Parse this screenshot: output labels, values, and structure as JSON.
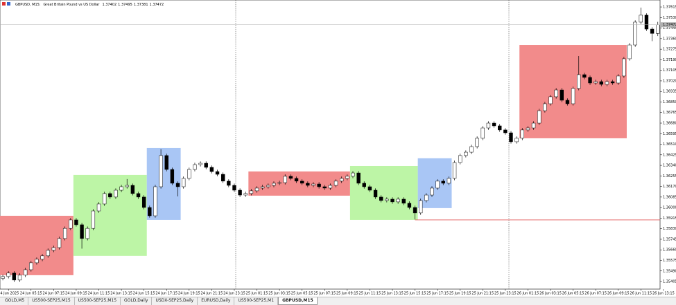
{
  "chart_data": {
    "type": "candlestick",
    "symbol": "GBPUSD, M15:",
    "description": "Great Britain Pound vs US Dollar",
    "candles": {
      "open": [
        1.3543,
        1.35445,
        1.35473,
        1.35417,
        1.35456,
        1.355,
        1.35556,
        1.35584,
        1.35612,
        1.35656,
        1.35678,
        1.35751,
        1.35833,
        1.35901,
        1.35862,
        1.35751,
        1.35833,
        1.35973,
        1.36029,
        1.36113,
        1.36085,
        1.3614,
        1.36168,
        1.36179,
        1.36113,
        1.36085,
        1.36001,
        1.35934,
        1.36168,
        1.36419,
        1.36307,
        1.36196,
        1.36168,
        1.36235,
        1.36307,
        1.36346,
        1.36357,
        1.36324,
        1.3629,
        1.36268,
        1.36213,
        1.36179,
        1.3614,
        1.36101,
        1.36113,
        1.36135,
        1.36157,
        1.36168,
        1.36179,
        1.36196,
        1.36201,
        1.36252,
        1.36235,
        1.36213,
        1.36196,
        1.36179,
        1.3619,
        1.36168,
        1.36157,
        1.36179,
        1.36213,
        1.36235,
        1.36252,
        1.36279,
        1.36196,
        1.36168,
        1.3614,
        1.36085,
        1.36057,
        1.36068,
        1.36046,
        1.36068,
        1.36035,
        1.36001,
        1.35957,
        1.36057,
        1.36101,
        1.36157,
        1.36213,
        1.36196,
        1.36235,
        1.36363,
        1.36419,
        1.36446,
        1.36491,
        1.36558,
        1.36641,
        1.3668,
        1.36658,
        1.36625,
        1.36602,
        1.3653,
        1.36558,
        1.36625,
        1.36641,
        1.3668,
        1.3678,
        1.36836,
        1.36892,
        1.36947,
        1.36864,
        1.36836,
        1.36959,
        1.3707,
        1.37048,
        1.37003,
        1.37014,
        1.36992,
        1.37014,
        1.37003,
        1.37059,
        1.37198,
        1.37309,
        1.37493,
        1.37549,
        1.37437,
        1.37402
      ],
      "high": [
        1.3546,
        1.35488,
        1.35488,
        1.35471,
        1.35515,
        1.35571,
        1.35599,
        1.35627,
        1.35671,
        1.35693,
        1.35766,
        1.35848,
        1.35916,
        1.35916,
        1.35877,
        1.35848,
        1.35988,
        1.36044,
        1.36128,
        1.36128,
        1.36155,
        1.36183,
        1.3623,
        1.36194,
        1.36128,
        1.361,
        1.36016,
        1.36183,
        1.3647,
        1.36434,
        1.36322,
        1.36211,
        1.3625,
        1.36322,
        1.36361,
        1.36372,
        1.36372,
        1.36339,
        1.36305,
        1.36283,
        1.36228,
        1.36194,
        1.36155,
        1.36128,
        1.3615,
        1.36172,
        1.36183,
        1.36194,
        1.36211,
        1.36216,
        1.36267,
        1.36267,
        1.3625,
        1.36228,
        1.36211,
        1.36205,
        1.36205,
        1.36183,
        1.36194,
        1.36228,
        1.3625,
        1.36267,
        1.36294,
        1.36294,
        1.36211,
        1.36183,
        1.36155,
        1.361,
        1.36083,
        1.36083,
        1.36083,
        1.36083,
        1.3605,
        1.36016,
        1.36072,
        1.36116,
        1.36172,
        1.36228,
        1.36228,
        1.3625,
        1.36378,
        1.36434,
        1.36461,
        1.36506,
        1.36573,
        1.36656,
        1.36695,
        1.36695,
        1.36673,
        1.3664,
        1.36617,
        1.36573,
        1.3664,
        1.36656,
        1.36695,
        1.36795,
        1.36851,
        1.36907,
        1.36962,
        1.36962,
        1.36879,
        1.36974,
        1.3722,
        1.37085,
        1.37063,
        1.37029,
        1.37029,
        1.37029,
        1.37029,
        1.37074,
        1.37213,
        1.37324,
        1.37508,
        1.3761,
        1.37564,
        1.37452,
        1.37495
      ],
      "low": [
        1.35415,
        1.3543,
        1.35402,
        1.35402,
        1.35441,
        1.35485,
        1.35541,
        1.35569,
        1.35597,
        1.35641,
        1.35663,
        1.35736,
        1.35818,
        1.35847,
        1.3567,
        1.35736,
        1.35818,
        1.35958,
        1.36014,
        1.3607,
        1.3607,
        1.36125,
        1.36153,
        1.36098,
        1.3607,
        1.35986,
        1.35919,
        1.35919,
        1.36153,
        1.36292,
        1.36181,
        1.3609,
        1.36153,
        1.3622,
        1.36292,
        1.36331,
        1.36309,
        1.36275,
        1.36253,
        1.36198,
        1.36164,
        1.36125,
        1.36086,
        1.36086,
        1.36098,
        1.3612,
        1.36142,
        1.36153,
        1.36164,
        1.36181,
        1.36186,
        1.3622,
        1.36198,
        1.36181,
        1.36164,
        1.36164,
        1.36153,
        1.36142,
        1.36142,
        1.36164,
        1.36198,
        1.3622,
        1.36237,
        1.36181,
        1.36153,
        1.36125,
        1.3607,
        1.36042,
        1.36042,
        1.36031,
        1.36031,
        1.3602,
        1.35986,
        1.35905,
        1.35942,
        1.36042,
        1.36086,
        1.36142,
        1.36181,
        1.36181,
        1.3622,
        1.36348,
        1.36404,
        1.36431,
        1.36476,
        1.36543,
        1.36626,
        1.36643,
        1.3661,
        1.36587,
        1.36515,
        1.36515,
        1.36543,
        1.3661,
        1.36626,
        1.36665,
        1.36765,
        1.36821,
        1.36877,
        1.36849,
        1.36821,
        1.36821,
        1.36944,
        1.37033,
        1.36988,
        1.36988,
        1.36977,
        1.36977,
        1.36988,
        1.36988,
        1.37044,
        1.37183,
        1.37294,
        1.37478,
        1.37422,
        1.3734,
        1.37381
      ],
      "close": [
        1.35445,
        1.35473,
        1.35417,
        1.35456,
        1.355,
        1.35556,
        1.35584,
        1.35612,
        1.35656,
        1.35678,
        1.35751,
        1.35833,
        1.35901,
        1.35862,
        1.35751,
        1.35833,
        1.35973,
        1.36029,
        1.36113,
        1.36085,
        1.3614,
        1.36168,
        1.36179,
        1.36113,
        1.36085,
        1.36001,
        1.35934,
        1.36168,
        1.36419,
        1.36307,
        1.36196,
        1.36168,
        1.36235,
        1.36307,
        1.36346,
        1.36357,
        1.36324,
        1.3629,
        1.36268,
        1.36213,
        1.36179,
        1.3614,
        1.36101,
        1.36113,
        1.36135,
        1.36157,
        1.36168,
        1.36179,
        1.36196,
        1.36201,
        1.36252,
        1.36235,
        1.36213,
        1.36196,
        1.36179,
        1.3619,
        1.36168,
        1.36157,
        1.36179,
        1.36213,
        1.36235,
        1.36252,
        1.36279,
        1.36196,
        1.36168,
        1.3614,
        1.36085,
        1.36057,
        1.36068,
        1.36046,
        1.36068,
        1.36035,
        1.36001,
        1.35957,
        1.36057,
        1.36101,
        1.36157,
        1.36213,
        1.36196,
        1.36235,
        1.36363,
        1.36419,
        1.36446,
        1.36491,
        1.36558,
        1.36641,
        1.3668,
        1.36658,
        1.36625,
        1.36602,
        1.3653,
        1.36558,
        1.36625,
        1.36641,
        1.3668,
        1.3678,
        1.36836,
        1.36892,
        1.36947,
        1.36864,
        1.36836,
        1.36959,
        1.3707,
        1.37048,
        1.37003,
        1.37014,
        1.36992,
        1.37014,
        1.37003,
        1.37059,
        1.37198,
        1.37309,
        1.37493,
        1.37549,
        1.37437,
        1.37402,
        1.37472
      ]
    },
    "up_color": "#ffffff",
    "down_color": "#000000",
    "wick_color": "#000000",
    "xlim": [
      -0.5,
      116.4
    ],
    "xticks": [
      {
        "value": 1,
        "label": "24 Jun 2025"
      },
      {
        "value": 5,
        "label": "24 Jun 05:15"
      },
      {
        "value": 9,
        "label": "24 Jun 07:15"
      },
      {
        "value": 13,
        "label": "24 Jun 09:15"
      },
      {
        "value": 17,
        "label": "24 Jun 11:15"
      },
      {
        "value": 21,
        "label": "24 Jun 13:15"
      },
      {
        "value": 25,
        "label": "24 Jun 15:15"
      },
      {
        "value": 29,
        "label": "24 Jun 17:15"
      },
      {
        "value": 33,
        "label": "24 Jun 19:15"
      },
      {
        "value": 37,
        "label": "24 Jun 21:15"
      },
      {
        "value": 41,
        "label": "24 Jun 23:15"
      },
      {
        "value": 45,
        "label": "25 Jun 01:15"
      },
      {
        "value": 49,
        "label": "25 Jun 03:15"
      },
      {
        "value": 53,
        "label": "25 Jun 05:15"
      },
      {
        "value": 57,
        "label": "25 Jun 07:15"
      },
      {
        "value": 61,
        "label": "25 Jun 09:15"
      },
      {
        "value": 65,
        "label": "25 Jun 11:15"
      },
      {
        "value": 69,
        "label": "25 Jun 13:15"
      },
      {
        "value": 73,
        "label": "25 Jun 15:15"
      },
      {
        "value": 77,
        "label": "25 Jun 17:15"
      },
      {
        "value": 81,
        "label": "25 Jun 19:15"
      },
      {
        "value": 85,
        "label": "25 Jun 21:15"
      },
      {
        "value": 89,
        "label": "25 Jun 23:15"
      },
      {
        "value": 93,
        "label": "26 Jun 01:15"
      },
      {
        "value": 97,
        "label": "26 Jun 03:15"
      },
      {
        "value": 101,
        "label": "26 Jun 05:15"
      },
      {
        "value": 105,
        "label": "26 Jun 07:15"
      },
      {
        "value": 109,
        "label": "26 Jun 09:15"
      },
      {
        "value": 113,
        "label": "26 Jun 11:15"
      },
      {
        "value": 117,
        "label": "26 Jun 13:15"
      }
    ],
    "ylim": [
      1.35344,
      1.37671
    ],
    "yticks": [
      1.37615,
      {
        "value": 1.3753,
        "label": "1.37530"
      },
      1.37445,
      {
        "value": 1.3736,
        "label": "1.37360"
      },
      1.37275,
      {
        "value": 1.3719,
        "label": "1.37190"
      },
      1.37105,
      {
        "value": 1.3702,
        "label": "1.37020"
      },
      1.36935,
      {
        "value": 1.3685,
        "label": "1.36850"
      },
      1.36765,
      {
        "value": 1.3668,
        "label": "1.36680"
      },
      1.36595,
      {
        "value": 1.3651,
        "label": "1.36510"
      },
      1.36425,
      {
        "value": 1.3634,
        "label": "1.36340"
      },
      1.36255,
      {
        "value": 1.3617,
        "label": "1.36170"
      },
      1.36085,
      {
        "value": 1.36,
        "label": "1.36000"
      },
      1.35915,
      {
        "value": 1.3583,
        "label": "1.35830"
      },
      1.35745,
      {
        "value": 1.3566,
        "label": "1.35660"
      },
      1.35575,
      {
        "value": 1.3549,
        "label": "1.35490"
      },
      1.35405
    ],
    "grid": false,
    "sessions": [
      {
        "start": 0,
        "end": 12,
        "high": 1.35934,
        "low": 1.35456,
        "color": "#f28b8b"
      },
      {
        "start": 13,
        "end": 25,
        "high": 1.36263,
        "low": 1.35612,
        "color": "#bdf5a6"
      },
      {
        "start": 26,
        "end": 31,
        "high": 1.3648,
        "low": 1.35901,
        "color": "#a9c6f5"
      },
      {
        "start": 44,
        "end": 61,
        "high": 1.36291,
        "low": 1.36096,
        "color": "#f28b8b"
      },
      {
        "start": 62,
        "end": 73,
        "high": 1.36335,
        "low": 1.35901,
        "color": "#bdf5a6"
      },
      {
        "start": 74,
        "end": 79,
        "high": 1.36397,
        "low": 1.35996,
        "color": "#a9c6f5"
      },
      {
        "start": 92,
        "end": 110,
        "high": 1.37309,
        "low": 1.36558,
        "color": "#f28b8b"
      }
    ],
    "levels": [
      {
        "value": 1.35901,
        "start": 73,
        "color": "#e05a5a"
      }
    ]
  },
  "tabs": [
    "GOLD,M5",
    "US500-SEP25,M15",
    "US500-SEP25,M15",
    "GOLD,Daily",
    "USDX-SEP25,Daily",
    "EURUSD,Daily",
    "US500-SEP25,M1",
    "GBPUSD,M15"
  ],
  "active_tab": 7
}
